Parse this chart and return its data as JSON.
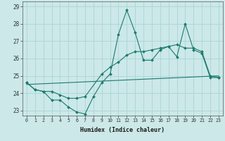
{
  "xlabel": "Humidex (Indice chaleur)",
  "ylabel": "",
  "xlim": [
    -0.5,
    23.5
  ],
  "ylim": [
    22.7,
    29.3
  ],
  "yticks": [
    23,
    24,
    25,
    26,
    27,
    28,
    29
  ],
  "xticks": [
    0,
    1,
    2,
    3,
    4,
    5,
    6,
    7,
    8,
    9,
    10,
    11,
    12,
    13,
    14,
    15,
    16,
    17,
    18,
    19,
    20,
    21,
    22,
    23
  ],
  "bg_color": "#cce8e8",
  "grid_color": "#aad4d4",
  "line_color": "#1a7a6e",
  "line1_x": [
    0,
    1,
    2,
    3,
    4,
    5,
    6,
    7,
    8,
    9,
    10,
    11,
    12,
    13,
    14,
    15,
    16,
    17,
    18,
    19,
    20,
    21,
    22,
    23
  ],
  "line1_y": [
    24.6,
    24.2,
    24.1,
    23.6,
    23.6,
    23.2,
    22.9,
    22.8,
    23.8,
    24.6,
    25.1,
    27.4,
    28.8,
    27.5,
    25.9,
    25.9,
    26.5,
    26.7,
    26.1,
    28.0,
    26.5,
    26.3,
    24.9,
    24.9
  ],
  "line2_x": [
    0,
    1,
    2,
    3,
    4,
    5,
    6,
    7,
    9,
    10,
    11,
    12,
    13,
    14,
    15,
    16,
    17,
    18,
    19,
    20,
    21,
    22,
    23
  ],
  "line2_y": [
    24.6,
    24.2,
    24.1,
    24.1,
    23.9,
    23.7,
    23.7,
    23.8,
    25.1,
    25.5,
    25.8,
    26.2,
    26.4,
    26.4,
    26.5,
    26.6,
    26.7,
    26.8,
    26.6,
    26.6,
    26.4,
    25.0,
    24.9
  ],
  "line3_x": [
    0,
    23
  ],
  "line3_y": [
    24.5,
    25.0
  ]
}
